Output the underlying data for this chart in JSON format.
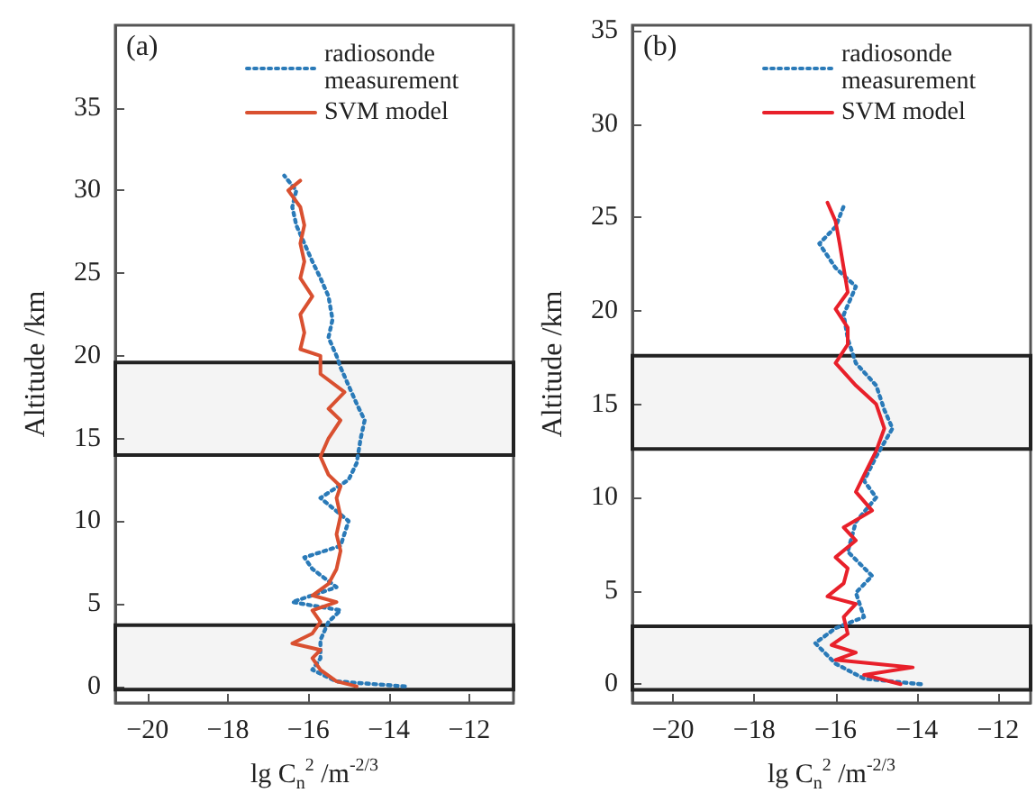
{
  "chart_data": [
    {
      "type": "line",
      "xlabel": "lg C$_{n}$$^{2}$ /m$^{-2/3}$",
      "ylabel": "Altitude /km",
      "annotations": [
        "(a)"
      ],
      "xlim": [
        -20.8,
        -10.9
      ],
      "xticks": [
        -20,
        -18,
        -16,
        -14,
        -12
      ],
      "ylim": [
        -1,
        40
      ],
      "yticks": [
        0,
        5,
        10,
        15,
        20,
        25,
        30,
        35
      ],
      "grid": false,
      "legend": "top right",
      "marker": "none",
      "bands": [
        {
          "axis": "y",
          "from": 14,
          "to": 19.6,
          "color": "#222222"
        },
        {
          "axis": "y",
          "from": -0.2,
          "to": 3.7,
          "color": "#222222"
        }
      ],
      "series": [
        {
          "name": "radiosonde measurement",
          "color": "#2a7ab8",
          "line_style": "dotted",
          "x": [
            -13.6,
            -15.3,
            -15.9,
            -15.7,
            -15.7,
            -15.5,
            -15.2,
            -16.4,
            -15.3,
            -15.9,
            -16.1,
            -15.2,
            -15.0,
            -15.7,
            -15.0,
            -14.8,
            -14.7,
            -14.6,
            -14.8,
            -15.0,
            -15.2,
            -15.3,
            -15.5,
            -15.4,
            -15.5,
            -15.7,
            -15.9,
            -16.1,
            -16.3,
            -16.4,
            -16.3,
            -16.6
          ],
          "values": [
            0,
            0.3,
            1.0,
            1.7,
            2.8,
            3.9,
            4.6,
            5.1,
            6.0,
            7.1,
            7.8,
            8.5,
            10.0,
            11.4,
            12.5,
            13.5,
            15.0,
            16.1,
            17.1,
            18.2,
            19.3,
            20.0,
            21.1,
            22.2,
            23.6,
            24.7,
            25.7,
            26.8,
            27.9,
            29.0,
            30.0,
            30.9
          ]
        },
        {
          "name": "SVM model",
          "color": "#d95030",
          "line_style": "solid",
          "x": [
            -14.8,
            -15.3,
            -15.7,
            -15.9,
            -15.7,
            -16.4,
            -15.9,
            -15.7,
            -15.9,
            -15.3,
            -15.9,
            -15.5,
            -15.3,
            -15.2,
            -15.3,
            -15.2,
            -15.3,
            -15.2,
            -15.5,
            -15.7,
            -15.5,
            -15.2,
            -15.5,
            -15.1,
            -15.7,
            -15.7,
            -16.2,
            -16.1,
            -16.2,
            -15.9,
            -16.2,
            -16.1,
            -16.2,
            -16.1,
            -16.2,
            -16.5,
            -16.2
          ],
          "values": [
            0,
            0.3,
            1.0,
            1.7,
            2.2,
            2.6,
            3.2,
            3.9,
            4.6,
            5.1,
            5.5,
            6.2,
            7.1,
            8.2,
            9.2,
            10.3,
            11.4,
            12.1,
            12.8,
            13.9,
            15.0,
            16.1,
            16.8,
            17.8,
            18.9,
            20.0,
            20.4,
            21.4,
            22.5,
            23.6,
            24.7,
            25.7,
            26.8,
            27.9,
            29.0,
            30.0,
            30.6
          ]
        }
      ]
    },
    {
      "type": "line",
      "xlabel": "lg C$_{n}$$^{2}$ /m$^{-2/3}$",
      "ylabel": "Altitude /km",
      "annotations": [
        "(b)"
      ],
      "xlim": [
        -21,
        -11.2
      ],
      "xticks": [
        -20,
        -18,
        -16,
        -14,
        -12
      ],
      "ylim": [
        -1,
        35.3
      ],
      "yticks": [
        0,
        5,
        10,
        15,
        20,
        25,
        30,
        35
      ],
      "grid": false,
      "legend": "top right",
      "marker": "none",
      "bands": [
        {
          "axis": "y",
          "from": 12.6,
          "to": 17.6,
          "color": "#222222"
        },
        {
          "axis": "y",
          "from": -0.3,
          "to": 3.1,
          "color": "#222222"
        }
      ],
      "series": [
        {
          "name": "radiosonde measurement",
          "color": "#2a7ab8",
          "line_style": "dotted",
          "x": [
            -13.9,
            -15.3,
            -16.0,
            -16.5,
            -16.0,
            -15.3,
            -15.5,
            -15.1,
            -15.7,
            -15.5,
            -15.0,
            -15.3,
            -15.0,
            -14.6,
            -14.8,
            -15.0,
            -15.5,
            -15.7,
            -15.8,
            -15.5,
            -16.0,
            -16.4,
            -16.0,
            -15.8
          ],
          "values": [
            0,
            0.3,
            1.1,
            2.2,
            3.0,
            3.6,
            4.9,
            5.8,
            7.1,
            8.7,
            10.0,
            10.9,
            12.2,
            13.7,
            14.7,
            16.0,
            17.2,
            18.5,
            19.8,
            21.3,
            22.3,
            23.6,
            24.5,
            25.6
          ]
        },
        {
          "name": "SVM model",
          "color": "#e8202a",
          "line_style": "solid",
          "x": [
            -14.4,
            -15.3,
            -14.1,
            -16.0,
            -15.5,
            -16.1,
            -15.7,
            -15.8,
            -15.5,
            -16.2,
            -15.8,
            -15.7,
            -16.0,
            -15.5,
            -15.8,
            -15.1,
            -15.5,
            -15.3,
            -15.0,
            -14.8,
            -15.0,
            -15.5,
            -16.0,
            -15.7,
            -15.7,
            -16.0,
            -15.7,
            -15.8,
            -15.9,
            -16.0,
            -16.2
          ],
          "values": [
            0,
            0.5,
            0.9,
            1.3,
            1.7,
            2.1,
            2.7,
            3.6,
            4.3,
            4.7,
            5.4,
            6.2,
            6.8,
            7.7,
            8.4,
            9.3,
            10.3,
            11.2,
            12.5,
            13.7,
            15.0,
            16.0,
            17.2,
            18.2,
            19.1,
            20.1,
            21.0,
            22.3,
            23.6,
            24.8,
            25.8
          ]
        }
      ]
    }
  ]
}
